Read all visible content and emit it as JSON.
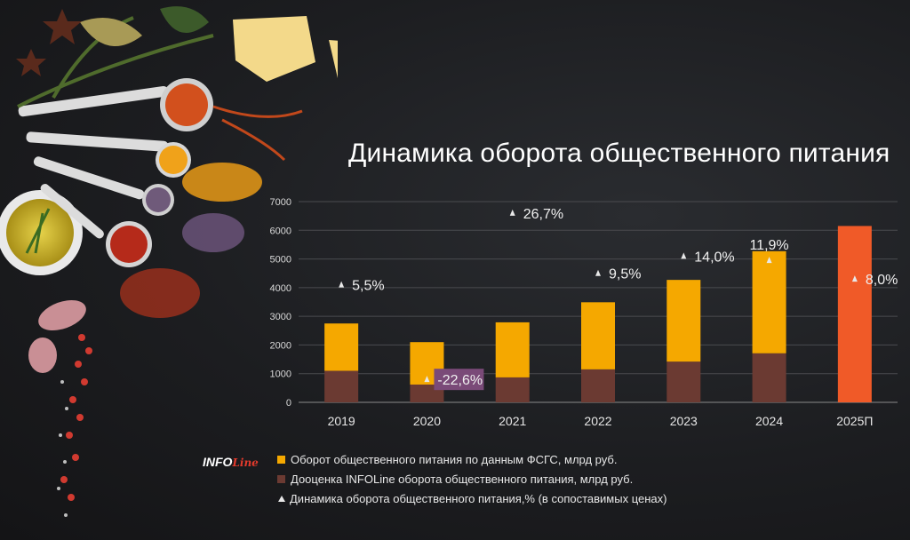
{
  "title": "Динамика оборота общественного питания",
  "logo": {
    "part1": "INFO",
    "part2": "Line"
  },
  "legend": {
    "items": [
      {
        "label": "Оборот общественного питания по данным ФСГС, млрд руб.",
        "color": "#f5a800"
      },
      {
        "label": "Дооценка INFOLine оборота общественного питания, млрд руб.",
        "color": "#6b3a32"
      },
      {
        "label": "Динамика оборота общественного питания,% (в сопоставимых ценах)",
        "color": "#e8e8e8"
      }
    ]
  },
  "chart_data": {
    "type": "bar",
    "stacked": true,
    "categories": [
      "2019",
      "2020",
      "2021",
      "2022",
      "2023",
      "2024",
      "2025П"
    ],
    "y_ticks": [
      "0",
      "1000",
      "2000",
      "3000",
      "4000",
      "5000",
      "6000",
      "7000"
    ],
    "ylim": [
      0,
      7000
    ],
    "grid": true,
    "series": [
      {
        "name": "Дооценка INFOLine оборота общественного питания, млрд руб.",
        "color": "#6b3a32",
        "values": [
          1100,
          620,
          870,
          1150,
          1420,
          1710,
          null
        ]
      },
      {
        "name": "Оборот общественного питания по данным ФСГС, млрд руб.",
        "color": "#f5a800",
        "values": [
          1650,
          1480,
          1920,
          2340,
          2850,
          3560,
          null
        ]
      }
    ],
    "forecast": {
      "category": "2025П",
      "value": 6150,
      "color": "#f05a28"
    },
    "dynamics": {
      "name": "Динамика оборота общественного питания,% (в сопоставимых ценах)",
      "labels": [
        "5,5%",
        "-22,6%",
        "26,7%",
        "9,5%",
        "14,0%",
        "11,9%",
        "8,0%"
      ],
      "marker_values": [
        4100,
        800,
        6600,
        4500,
        5100,
        4950,
        4300
      ],
      "label_style": [
        "right",
        "right-boxed",
        "right",
        "right",
        "right",
        "above",
        "right"
      ],
      "boxed_color": "#7a4a78"
    }
  }
}
